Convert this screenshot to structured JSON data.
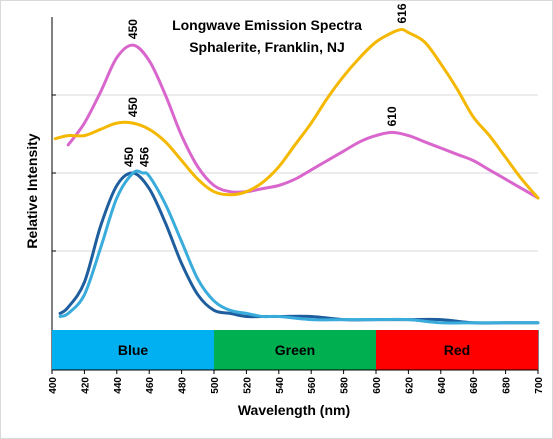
{
  "chart_data": {
    "type": "line",
    "title": "Longwave Emission Spectra",
    "subtitle": "Sphalerite, Franklin,  NJ",
    "xlabel": "Wavelength (nm)",
    "ylabel": "Relative Intensity",
    "xlim": [
      400,
      700
    ],
    "ylim": [
      0,
      100
    ],
    "x_ticks": [
      "400",
      "420",
      "440",
      "460",
      "480",
      "500",
      "520",
      "540",
      "560",
      "580",
      "600",
      "620",
      "640",
      "660",
      "680",
      "700"
    ],
    "y_gridlines": [
      25,
      50,
      75
    ],
    "grid": true,
    "color_bands": [
      {
        "label": "Blue",
        "x_start": 400,
        "x_end": 500,
        "color": "#00b0f0"
      },
      {
        "label": "Green",
        "x_start": 500,
        "x_end": 600,
        "color": "#00b050"
      },
      {
        "label": "Red",
        "x_start": 600,
        "x_end": 700,
        "color": "#ff0000"
      }
    ],
    "series": [
      {
        "color": "#d966cc",
        "x": [
          410,
          420,
          430,
          440,
          450,
          460,
          470,
          480,
          490,
          500,
          510,
          520,
          530,
          540,
          550,
          560,
          570,
          580,
          590,
          600,
          610,
          620,
          630,
          640,
          650,
          660,
          670,
          680,
          690,
          700
        ],
        "y": [
          59,
          66,
          76,
          87,
          91,
          86,
          75,
          62,
          52,
          46,
          44,
          44,
          45,
          46,
          48,
          51,
          54,
          57,
          60,
          62,
          63,
          62,
          60,
          58,
          56,
          54,
          51,
          48,
          45,
          42
        ]
      },
      {
        "color": "#f5b800",
        "x": [
          402,
          410,
          420,
          430,
          440,
          450,
          460,
          470,
          480,
          490,
          500,
          510,
          520,
          530,
          540,
          550,
          560,
          570,
          580,
          590,
          600,
          610,
          616,
          620,
          630,
          640,
          650,
          660,
          670,
          680,
          690,
          700
        ],
        "y": [
          61,
          62,
          62,
          64,
          66,
          66,
          64,
          60,
          54,
          48,
          44,
          43,
          44,
          47,
          52,
          59,
          66,
          74,
          81,
          87,
          92,
          95,
          96,
          95,
          92,
          85,
          77,
          68,
          62,
          55,
          48,
          42
        ]
      },
      {
        "color": "#1f5e9e",
        "x": [
          405,
          410,
          420,
          430,
          440,
          450,
          460,
          470,
          480,
          490,
          500,
          510,
          520,
          530,
          540,
          560,
          580,
          600,
          620,
          640,
          660,
          680,
          700
        ],
        "y": [
          5,
          7,
          15,
          33,
          46,
          50,
          45,
          34,
          21,
          11,
          6,
          5,
          4,
          4,
          4,
          4,
          3,
          3,
          3,
          3,
          2,
          2,
          2
        ]
      },
      {
        "color": "#3aacdc",
        "x": [
          405,
          410,
          420,
          430,
          440,
          450,
          456,
          460,
          470,
          480,
          490,
          500,
          510,
          520,
          530,
          540,
          560,
          580,
          600,
          620,
          640,
          660,
          680,
          700
        ],
        "y": [
          4,
          5,
          11,
          26,
          42,
          50,
          50,
          49,
          40,
          28,
          16,
          9,
          6,
          5,
          4,
          4,
          3,
          3,
          3,
          3,
          2,
          2,
          2,
          2
        ]
      }
    ],
    "annotations": [
      {
        "text": "450",
        "x": 450,
        "y": 91
      },
      {
        "text": "450",
        "x": 450,
        "y": 66
      },
      {
        "text": "450",
        "x": 450,
        "y": 50
      },
      {
        "text": "456",
        "x": 456,
        "y": 50
      },
      {
        "text": "616",
        "x": 616,
        "y": 96
      },
      {
        "text": "610",
        "x": 610,
        "y": 63
      }
    ]
  }
}
